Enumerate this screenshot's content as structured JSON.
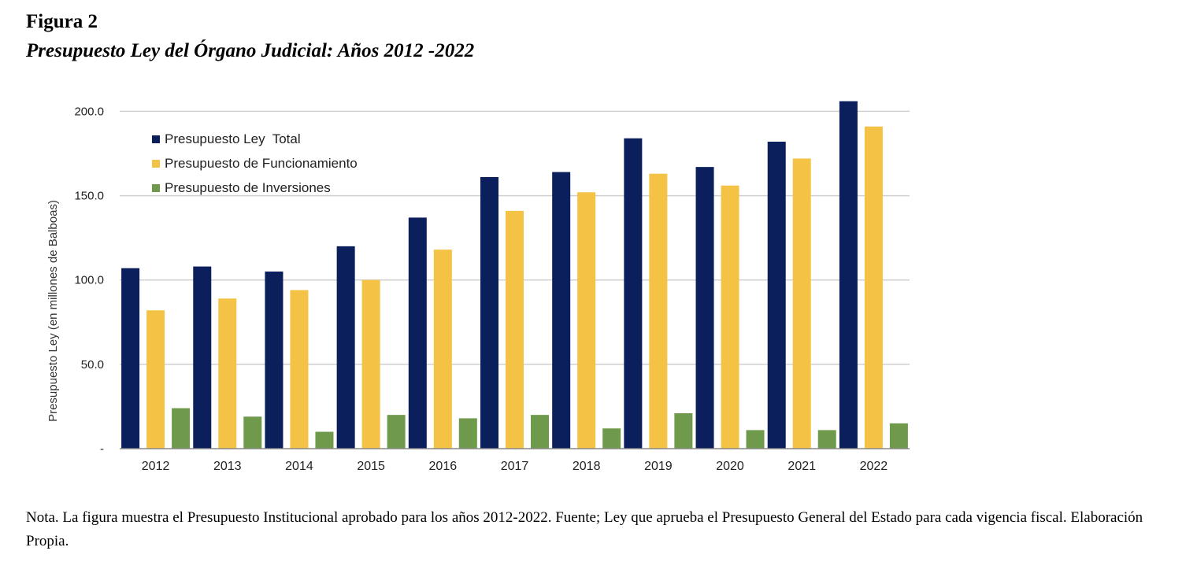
{
  "figure_label": "Figura 2",
  "figure_title": "Presupuesto Ley del Órgano Judicial: Años 2012 -2022",
  "note": "Nota. La figura muestra el Presupuesto Institucional aprobado para los años 2012-2022. Fuente; Ley que aprueba el Presupuesto General del Estado para cada vigencia fiscal. Elaboración Propia.",
  "colors": {
    "total": "#0b1f5c",
    "funcionamiento": "#f4c244",
    "inversiones": "#6f9a4b",
    "grid": "#d0d0d0",
    "axis": "#888888"
  },
  "chart_data": {
    "type": "bar",
    "title": "",
    "xlabel": "",
    "ylabel": "Presupuesto Ley (en millones de Balboas)",
    "ylim": [
      0,
      210
    ],
    "yticks": [
      0,
      50,
      100,
      150,
      200
    ],
    "ytick_labels": [
      "-",
      "50.0",
      "100.0",
      "150.0",
      "200.0"
    ],
    "legend_position": "top-left",
    "categories": [
      "2012",
      "2013",
      "2014",
      "2015",
      "2016",
      "2017",
      "2018",
      "2019",
      "2020",
      "2021",
      "2022"
    ],
    "series": [
      {
        "name": "Presupuesto Ley  Total",
        "color_key": "total",
        "values": [
          107,
          108,
          105,
          120,
          137,
          161,
          164,
          184,
          167,
          182,
          206
        ]
      },
      {
        "name": "Presupuesto de Funcionamiento",
        "color_key": "funcionamiento",
        "values": [
          82,
          89,
          94,
          100,
          118,
          141,
          152,
          163,
          156,
          172,
          191
        ]
      },
      {
        "name": "Presupuesto de Inversiones",
        "color_key": "inversiones",
        "values": [
          24,
          19,
          10,
          20,
          18,
          20,
          12,
          21,
          11,
          11,
          15
        ]
      }
    ]
  }
}
